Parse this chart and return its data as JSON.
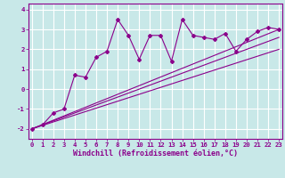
{
  "xlabel": "Windchill (Refroidissement éolien,°C)",
  "bg_color": "#c8e8e8",
  "grid_color": "#ffffff",
  "line_color": "#8b008b",
  "x_scatter": [
    0,
    1,
    2,
    3,
    4,
    5,
    6,
    7,
    8,
    9,
    10,
    11,
    12,
    13,
    14,
    15,
    16,
    17,
    18,
    19,
    20,
    21,
    22,
    23
  ],
  "y_scatter": [
    -2,
    -1.8,
    -1.2,
    -1.0,
    0.7,
    0.6,
    1.6,
    1.9,
    3.5,
    2.7,
    1.5,
    2.7,
    2.7,
    1.4,
    3.5,
    2.7,
    2.6,
    2.5,
    2.8,
    1.9,
    2.5,
    2.9,
    3.1,
    3.0
  ],
  "line1_x": [
    0,
    23
  ],
  "line1_y": [
    -2,
    3.0
  ],
  "line2_x": [
    0,
    23
  ],
  "line2_y": [
    -2,
    2.6
  ],
  "line3_x": [
    0,
    23
  ],
  "line3_y": [
    -2,
    2.0
  ],
  "xlim": [
    -0.3,
    23.3
  ],
  "ylim": [
    -2.5,
    4.3
  ],
  "xticks": [
    0,
    1,
    2,
    3,
    4,
    5,
    6,
    7,
    8,
    9,
    10,
    11,
    12,
    13,
    14,
    15,
    16,
    17,
    18,
    19,
    20,
    21,
    22,
    23
  ],
  "yticks": [
    -2,
    -1,
    0,
    1,
    2,
    3,
    4
  ],
  "tick_fontsize": 5.2,
  "label_fontsize": 6.0
}
